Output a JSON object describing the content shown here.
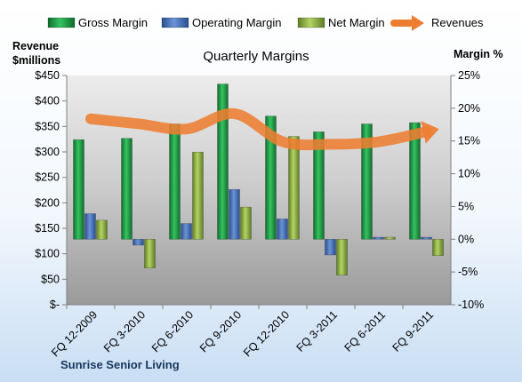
{
  "chart_data": {
    "type": "bar",
    "title": "Quarterly Margins",
    "left_axis_title": [
      "Revenue",
      "$millions"
    ],
    "right_axis_title": "Margin %",
    "categories": [
      "FQ 12-2009",
      "FQ 3-2010",
      "FQ 6-2010",
      "FQ 9-2010",
      "FQ 12-2010",
      "FQ 3-2011",
      "FQ 6-2011",
      "FQ 9-2011"
    ],
    "left_axis": {
      "min": 0,
      "max": 450,
      "step": 50,
      "tick_labels": [
        "$-",
        "$50",
        "$100",
        "$150",
        "$200",
        "$250",
        "$300",
        "$350",
        "$400",
        "$450"
      ]
    },
    "right_axis": {
      "min": -10,
      "max": 25,
      "step": 5,
      "tick_labels": [
        "-10%",
        "-5%",
        "0%",
        "5%",
        "10%",
        "15%",
        "20%",
        "25%"
      ]
    },
    "series": [
      {
        "name": "Gross Margin",
        "kind": "bar",
        "axis": "right",
        "color": "#1e9b45",
        "values": [
          15.2,
          15.4,
          17.6,
          23.7,
          18.8,
          16.4,
          17.6,
          17.8
        ]
      },
      {
        "name": "Operating Margin",
        "kind": "bar",
        "axis": "right",
        "color": "#3e6db5",
        "values": [
          3.9,
          -0.9,
          2.4,
          7.6,
          3.1,
          -2.4,
          0.3,
          0.3
        ]
      },
      {
        "name": "Net Margin",
        "kind": "bar",
        "axis": "right",
        "color": "#8cb040",
        "values": [
          2.9,
          -4.4,
          13.3,
          4.9,
          15.7,
          -5.5,
          0.3,
          -2.5
        ]
      },
      {
        "name": "Revenues",
        "kind": "line",
        "axis": "left",
        "color": "#ed7d31",
        "values": [
          365,
          355,
          345,
          375,
          320,
          315,
          320,
          340
        ]
      }
    ],
    "legend_position": "top",
    "grid": false
  },
  "source_label": "Sunrise Senior Living"
}
